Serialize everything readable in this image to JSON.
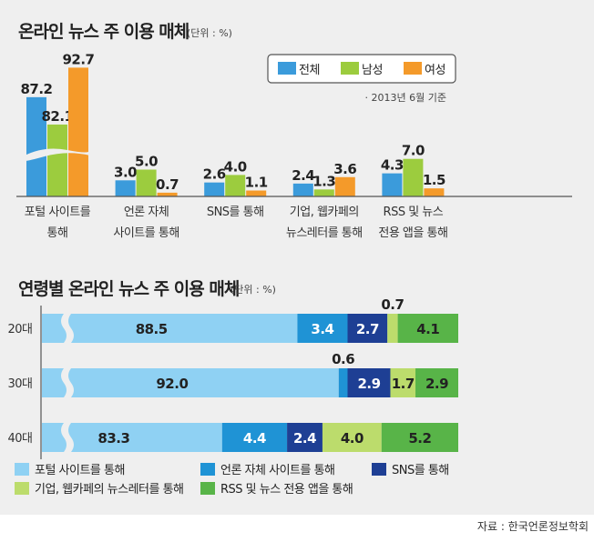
{
  "chart_data": [
    {
      "type": "bar",
      "title": "온라인 뉴스 주 이용 매체",
      "unit": "(단위 : %)",
      "note": "· 2013년 6월 기준",
      "categories": [
        [
          "포털 사이트를",
          "통해"
        ],
        [
          "언론 자체",
          "사이트를 통해"
        ],
        [
          "SNS를 통해"
        ],
        [
          "기업, 웹카페의",
          "뉴스레터를 통해"
        ],
        [
          "RSS 및 뉴스",
          "전용 앱을 통해"
        ]
      ],
      "series": [
        {
          "name": "전체",
          "color": "#3b9bdb",
          "values": [
            87.2,
            3.0,
            2.6,
            2.4,
            4.3
          ]
        },
        {
          "name": "남성",
          "color": "#9ccc3e",
          "values": [
            82.1,
            5.0,
            4.0,
            1.3,
            7.0
          ]
        },
        {
          "name": "여성",
          "color": "#f49a2a",
          "values": [
            92.7,
            0.7,
            1.1,
            3.6,
            1.5
          ]
        }
      ],
      "axis_break": true,
      "legend": "top-right"
    },
    {
      "type": "stacked-bar-horizontal",
      "title": "연령별 온라인 뉴스 주 이용 매체",
      "unit": "(단위 : %)",
      "categories": [
        "20대",
        "30대",
        "40대"
      ],
      "series": [
        {
          "name": "포털 사이트를 통해",
          "color": "#8fd1f3",
          "values": [
            88.5,
            92.0,
            83.3
          ]
        },
        {
          "name": "언론 자체 사이트를 통해",
          "color": "#1f93d5",
          "values": [
            3.4,
            0.6,
            4.4
          ]
        },
        {
          "name": "SNS를 통해",
          "color": "#1e3f94",
          "values": [
            2.7,
            2.9,
            2.4
          ]
        },
        {
          "name": "기업, 웹카페의 뉴스레터를 통해",
          "color": "#bcdc6c",
          "values": [
            0.7,
            1.7,
            4.0
          ]
        },
        {
          "name": "RSS 및 뉴스 전용 앱을 통해",
          "color": "#58b448",
          "values": [
            4.1,
            2.9,
            5.2
          ]
        }
      ],
      "axis_break": true,
      "legend": "bottom"
    }
  ],
  "source": "자료 : 한국언론정보학회"
}
